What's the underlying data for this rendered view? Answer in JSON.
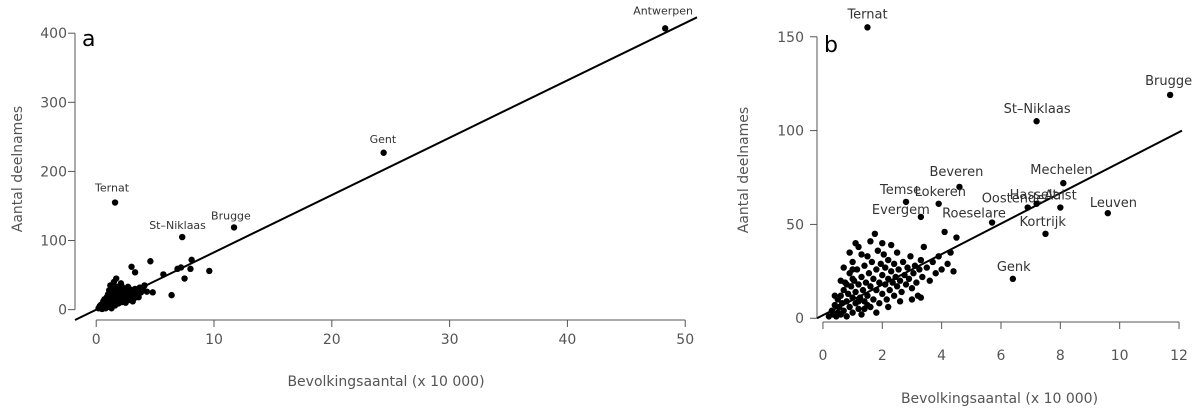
{
  "chart_data": [
    {
      "type": "scatter",
      "panel": "a",
      "xlabel": "Bevolkingsaantal (x 10 000)",
      "ylabel": "Aantal deelnames",
      "xlim": [
        -1.8,
        51
      ],
      "ylim": [
        -15,
        422
      ],
      "xticks": [
        0,
        10,
        20,
        30,
        40,
        50
      ],
      "yticks": [
        0,
        100,
        200,
        300,
        400
      ],
      "fit_line": {
        "x": [
          -1.8,
          51
        ],
        "y": [
          -15,
          423
        ]
      },
      "labeled_points": [
        {
          "name": "Antwerpen",
          "x": 48.3,
          "y": 407
        },
        {
          "name": "Gent",
          "x": 24.4,
          "y": 227
        },
        {
          "name": "Ternat",
          "x": 1.6,
          "y": 155
        },
        {
          "name": "St–Niklaas",
          "x": 7.3,
          "y": 105
        },
        {
          "name": "Brugge",
          "x": 11.7,
          "y": 119
        }
      ],
      "points": [
        [
          0.2,
          2
        ],
        [
          0.3,
          5
        ],
        [
          0.4,
          3
        ],
        [
          0.5,
          8
        ],
        [
          0.5,
          1
        ],
        [
          0.6,
          12
        ],
        [
          0.6,
          4
        ],
        [
          0.7,
          6
        ],
        [
          0.7,
          15
        ],
        [
          0.8,
          2
        ],
        [
          0.8,
          10
        ],
        [
          0.9,
          18
        ],
        [
          0.9,
          7
        ],
        [
          1.0,
          4
        ],
        [
          1.0,
          13
        ],
        [
          1.0,
          22
        ],
        [
          1.1,
          9
        ],
        [
          1.1,
          28
        ],
        [
          1.2,
          15
        ],
        [
          1.2,
          5
        ],
        [
          1.2,
          35
        ],
        [
          1.3,
          19
        ],
        [
          1.3,
          11
        ],
        [
          1.3,
          2
        ],
        [
          1.4,
          24
        ],
        [
          1.4,
          8
        ],
        [
          1.5,
          30
        ],
        [
          1.5,
          14
        ],
        [
          1.5,
          40
        ],
        [
          1.6,
          20
        ],
        [
          1.6,
          6
        ],
        [
          1.7,
          26
        ],
        [
          1.7,
          12
        ],
        [
          1.7,
          45
        ],
        [
          1.8,
          17
        ],
        [
          1.8,
          33
        ],
        [
          1.9,
          9
        ],
        [
          1.9,
          22
        ],
        [
          2.0,
          28
        ],
        [
          2.0,
          15
        ],
        [
          2.1,
          38
        ],
        [
          2.1,
          20
        ],
        [
          2.2,
          11
        ],
        [
          2.2,
          25
        ],
        [
          2.3,
          31
        ],
        [
          2.3,
          16
        ],
        [
          2.4,
          21
        ],
        [
          2.5,
          27
        ],
        [
          2.5,
          10
        ],
        [
          2.6,
          18
        ],
        [
          2.7,
          33
        ],
        [
          2.7,
          24
        ],
        [
          2.8,
          14
        ],
        [
          2.9,
          29
        ],
        [
          3.0,
          20
        ],
        [
          3.0,
          62
        ],
        [
          3.1,
          26
        ],
        [
          3.2,
          16
        ],
        [
          3.3,
          54
        ],
        [
          3.3,
          30
        ],
        [
          3.4,
          22
        ],
        [
          3.5,
          27
        ],
        [
          3.6,
          18
        ],
        [
          3.7,
          32
        ],
        [
          3.8,
          25
        ],
        [
          4.0,
          28
        ],
        [
          4.1,
          35
        ],
        [
          4.3,
          26
        ],
        [
          4.6,
          70
        ],
        [
          4.8,
          25
        ],
        [
          5.7,
          51
        ],
        [
          6.4,
          21
        ],
        [
          6.9,
          59
        ],
        [
          7.2,
          61
        ],
        [
          7.5,
          45
        ],
        [
          8.0,
          59
        ],
        [
          8.1,
          72
        ],
        [
          9.6,
          56
        ],
        [
          0.4,
          7
        ],
        [
          0.6,
          9
        ],
        [
          0.8,
          14
        ],
        [
          1.1,
          17
        ],
        [
          1.3,
          26
        ],
        [
          1.6,
          31
        ],
        [
          1.9,
          27
        ],
        [
          2.2,
          33
        ],
        [
          2.4,
          13
        ],
        [
          2.8,
          20
        ],
        [
          3.1,
          12
        ]
      ]
    },
    {
      "type": "scatter",
      "panel": "b",
      "xlabel": "Bevolkingsaantal (x 10 000)",
      "ylabel": "Aantal deelnames",
      "xlim": [
        -0.2,
        12.1
      ],
      "ylim": [
        -2,
        160
      ],
      "xticks": [
        0,
        2,
        4,
        6,
        8,
        10,
        12
      ],
      "yticks": [
        0,
        50,
        100,
        150
      ],
      "fit_line": {
        "x": [
          -0.2,
          12.1
        ],
        "y": [
          0,
          100
        ]
      },
      "labeled_points": [
        {
          "name": "Ternat",
          "x": 1.5,
          "y": 155
        },
        {
          "name": "Brugge",
          "x": 11.7,
          "y": 119
        },
        {
          "name": "St–Niklaas",
          "x": 7.2,
          "y": 105
        },
        {
          "name": "Mechelen",
          "x": 8.1,
          "y": 72
        },
        {
          "name": "Beveren",
          "x": 4.6,
          "y": 70
        },
        {
          "name": "Temse",
          "x": 2.8,
          "y": 62
        },
        {
          "name": "Lokeren",
          "x": 3.9,
          "y": 61
        },
        {
          "name": "Evergem",
          "x": 3.3,
          "y": 54
        },
        {
          "name": "Oostende",
          "x": 6.9,
          "y": 59
        },
        {
          "name": "Hasselt",
          "x": 7.2,
          "y": 61
        },
        {
          "name": "Aalst",
          "x": 8.0,
          "y": 59
        },
        {
          "name": "Roeselare",
          "x": 5.7,
          "y": 51
        },
        {
          "name": "Leuven",
          "x": 9.6,
          "y": 56
        },
        {
          "name": "Kortrijk",
          "x": 7.5,
          "y": 45
        },
        {
          "name": "Genk",
          "x": 6.4,
          "y": 21
        }
      ],
      "points": [
        [
          0.2,
          1
        ],
        [
          0.3,
          4
        ],
        [
          0.35,
          2
        ],
        [
          0.4,
          7
        ],
        [
          0.45,
          1
        ],
        [
          0.5,
          10
        ],
        [
          0.5,
          3
        ],
        [
          0.55,
          6
        ],
        [
          0.6,
          12
        ],
        [
          0.6,
          2
        ],
        [
          0.65,
          8
        ],
        [
          0.7,
          15
        ],
        [
          0.7,
          4
        ],
        [
          0.75,
          19
        ],
        [
          0.8,
          9
        ],
        [
          0.8,
          1
        ],
        [
          0.85,
          13
        ],
        [
          0.9,
          24
        ],
        [
          0.9,
          6
        ],
        [
          0.95,
          17
        ],
        [
          1.0,
          11
        ],
        [
          1.0,
          3
        ],
        [
          1.0,
          30
        ],
        [
          1.05,
          20
        ],
        [
          1.1,
          8
        ],
        [
          1.1,
          14
        ],
        [
          1.15,
          26
        ],
        [
          1.2,
          5
        ],
        [
          1.2,
          18
        ],
        [
          1.2,
          38
        ],
        [
          1.25,
          11
        ],
        [
          1.3,
          22
        ],
        [
          1.3,
          2
        ],
        [
          1.35,
          15
        ],
        [
          1.4,
          28
        ],
        [
          1.4,
          9
        ],
        [
          1.45,
          19
        ],
        [
          1.5,
          33
        ],
        [
          1.5,
          12
        ],
        [
          1.55,
          24
        ],
        [
          1.6,
          6
        ],
        [
          1.6,
          17
        ],
        [
          1.65,
          30
        ],
        [
          1.7,
          21
        ],
        [
          1.7,
          10
        ],
        [
          1.75,
          45
        ],
        [
          1.8,
          15
        ],
        [
          1.8,
          26
        ],
        [
          1.85,
          36
        ],
        [
          1.9,
          19
        ],
        [
          1.9,
          8
        ],
        [
          1.95,
          29
        ],
        [
          2.0,
          13
        ],
        [
          2.0,
          23
        ],
        [
          2.05,
          34
        ],
        [
          2.1,
          18
        ],
        [
          2.1,
          27
        ],
        [
          2.15,
          10
        ],
        [
          2.2,
          21
        ],
        [
          2.2,
          31
        ],
        [
          2.25,
          15
        ],
        [
          2.3,
          25
        ],
        [
          2.35,
          19
        ],
        [
          2.4,
          29
        ],
        [
          2.4,
          12
        ],
        [
          2.45,
          22
        ],
        [
          2.5,
          17
        ],
        [
          2.5,
          35
        ],
        [
          2.55,
          26
        ],
        [
          2.6,
          20
        ],
        [
          2.65,
          14
        ],
        [
          2.7,
          30
        ],
        [
          2.75,
          23
        ],
        [
          2.8,
          18
        ],
        [
          2.85,
          27
        ],
        [
          2.9,
          21
        ],
        [
          2.95,
          33
        ],
        [
          3.0,
          16
        ],
        [
          3.05,
          24
        ],
        [
          3.1,
          28
        ],
        [
          3.15,
          19
        ],
        [
          3.2,
          12
        ],
        [
          3.25,
          26
        ],
        [
          3.3,
          31
        ],
        [
          3.35,
          22
        ],
        [
          3.4,
          38
        ],
        [
          3.5,
          27
        ],
        [
          3.6,
          20
        ],
        [
          3.7,
          30
        ],
        [
          3.8,
          24
        ],
        [
          3.9,
          33
        ],
        [
          4.0,
          26
        ],
        [
          4.1,
          46
        ],
        [
          4.2,
          29
        ],
        [
          4.3,
          35
        ],
        [
          4.4,
          25
        ],
        [
          4.5,
          43
        ],
        [
          0.6,
          20
        ],
        [
          0.7,
          27
        ],
        [
          0.9,
          35
        ],
        [
          1.1,
          40
        ],
        [
          1.3,
          34
        ],
        [
          1.6,
          41
        ],
        [
          2.3,
          39
        ],
        [
          1.0,
          21
        ],
        [
          1.4,
          5
        ],
        [
          1.8,
          3
        ],
        [
          2.2,
          6
        ],
        [
          2.6,
          9
        ],
        [
          3.0,
          10
        ],
        [
          3.3,
          11
        ],
        [
          1.2,
          9
        ],
        [
          1.5,
          7
        ],
        [
          0.4,
          12
        ],
        [
          0.8,
          18
        ],
        [
          1.0,
          26
        ],
        [
          2.0,
          40
        ]
      ]
    }
  ]
}
